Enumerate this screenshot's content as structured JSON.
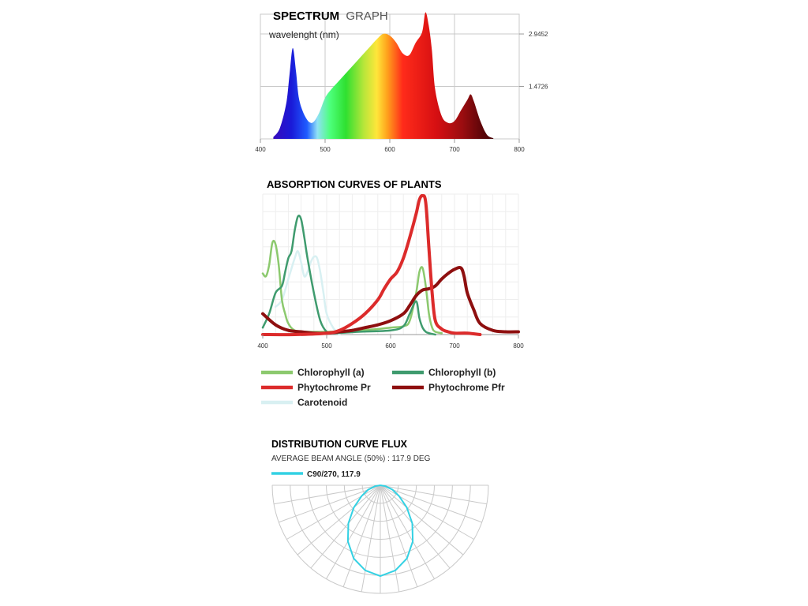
{
  "spectrum": {
    "title_bold": "SPECTRUM",
    "title_light": "GRAPH",
    "subtitle": "wavelenght (nm)",
    "chart_data": {
      "type": "area",
      "xlabel": "wavelenght (nm)",
      "xlim": [
        400,
        800
      ],
      "ylim": [
        0,
        3.5
      ],
      "xticks": [
        "400",
        "500",
        "600",
        "700",
        "800"
      ],
      "yticks": [
        {
          "value": 1.4726,
          "label": "1.4726"
        },
        {
          "value": 2.9452,
          "label": "2.9452"
        }
      ],
      "grid": true,
      "fill": "spectral-gradient",
      "x": [
        420,
        430,
        440,
        445,
        450,
        455,
        460,
        470,
        480,
        490,
        500,
        510,
        520,
        530,
        540,
        550,
        560,
        570,
        580,
        590,
        600,
        610,
        620,
        630,
        640,
        650,
        655,
        660,
        665,
        670,
        680,
        690,
        700,
        710,
        720,
        725,
        730,
        740,
        750,
        760
      ],
      "y": [
        0.05,
        0.3,
        1.0,
        1.8,
        2.55,
        1.9,
        1.1,
        0.6,
        0.45,
        0.7,
        1.15,
        1.4,
        1.6,
        1.8,
        2.0,
        2.2,
        2.4,
        2.6,
        2.8,
        2.95,
        2.9,
        2.7,
        2.4,
        2.35,
        2.7,
        3.0,
        3.55,
        3.2,
        2.5,
        1.4,
        0.65,
        0.45,
        0.5,
        0.8,
        1.1,
        1.25,
        1.05,
        0.5,
        0.12,
        0.02
      ]
    }
  },
  "absorption": {
    "title": "ABSORPTION CURVES OF PLANTS",
    "chart_data": {
      "type": "line",
      "xlim": [
        400,
        800
      ],
      "ylim": [
        0,
        1
      ],
      "xticks": [
        "400",
        "500",
        "600",
        "700",
        "800"
      ],
      "grid": true,
      "series": [
        {
          "name": "Chlorophyll (a)",
          "color": "#8cc96e",
          "x": [
            400,
            405,
            410,
            415,
            420,
            425,
            430,
            435,
            440,
            450,
            470,
            500,
            550,
            580,
            600,
            620,
            630,
            640,
            645,
            650,
            655,
            660,
            665,
            670,
            680
          ],
          "y": [
            0.44,
            0.42,
            0.5,
            0.66,
            0.65,
            0.5,
            0.25,
            0.15,
            0.08,
            0.03,
            0.02,
            0.02,
            0.03,
            0.04,
            0.05,
            0.06,
            0.1,
            0.3,
            0.45,
            0.48,
            0.35,
            0.15,
            0.05,
            0.02,
            0.01
          ]
        },
        {
          "name": "Chlorophyll (b)",
          "color": "#3f9b6e",
          "x": [
            400,
            410,
            420,
            430,
            435,
            440,
            445,
            450,
            455,
            460,
            465,
            470,
            480,
            490,
            500,
            510,
            550,
            600,
            620,
            630,
            640,
            645,
            650,
            655,
            660,
            670
          ],
          "y": [
            0.05,
            0.15,
            0.3,
            0.35,
            0.45,
            0.55,
            0.6,
            0.75,
            0.85,
            0.83,
            0.7,
            0.55,
            0.3,
            0.1,
            0.02,
            0.01,
            0.02,
            0.03,
            0.06,
            0.15,
            0.24,
            0.12,
            0.05,
            0.02,
            0.01,
            0.0
          ]
        },
        {
          "name": "Phytochrome Pr",
          "color": "#dc2b2b",
          "x": [
            400,
            450,
            500,
            520,
            540,
            560,
            580,
            590,
            600,
            610,
            620,
            630,
            640,
            645,
            650,
            655,
            660,
            665,
            670,
            680,
            690,
            700,
            720,
            740
          ],
          "y": [
            0.0,
            0.0,
            0.01,
            0.03,
            0.08,
            0.15,
            0.25,
            0.33,
            0.4,
            0.45,
            0.55,
            0.7,
            0.87,
            0.97,
            1.0,
            0.95,
            0.62,
            0.3,
            0.1,
            0.04,
            0.02,
            0.01,
            0.01,
            0.0
          ]
        },
        {
          "name": "Phytochrome Pfr",
          "color": "#8e0f0f",
          "x": [
            400,
            420,
            440,
            460,
            480,
            500,
            520,
            540,
            560,
            580,
            600,
            620,
            630,
            640,
            650,
            660,
            670,
            680,
            690,
            700,
            710,
            715,
            720,
            730,
            740,
            760,
            780,
            800
          ],
          "y": [
            0.15,
            0.07,
            0.03,
            0.02,
            0.01,
            0.01,
            0.02,
            0.03,
            0.05,
            0.07,
            0.1,
            0.15,
            0.21,
            0.28,
            0.32,
            0.33,
            0.35,
            0.4,
            0.44,
            0.47,
            0.48,
            0.42,
            0.3,
            0.18,
            0.08,
            0.03,
            0.02,
            0.02
          ]
        },
        {
          "name": "Carotenoid",
          "color": "#d8f0f2",
          "x": [
            420,
            430,
            440,
            450,
            455,
            460,
            465,
            470,
            475,
            480,
            485,
            490,
            495,
            500,
            510,
            520
          ],
          "y": [
            0.2,
            0.25,
            0.4,
            0.55,
            0.6,
            0.52,
            0.42,
            0.45,
            0.52,
            0.56,
            0.55,
            0.45,
            0.3,
            0.15,
            0.05,
            0.0
          ]
        }
      ]
    }
  },
  "flux": {
    "title": "DISTRIBUTION CURVE FLUX",
    "subtitle": "AVERAGE BEAM ANGLE  (50%) : 117.9 DEG",
    "legend_label": "C90/270, 117.9",
    "legend_color": "#33d1e3",
    "chart_data": {
      "type": "polar",
      "angular_step_deg": 10,
      "rings": 6,
      "series": [
        {
          "name": "C90/270, 117.9",
          "color": "#33d1e3",
          "angles_deg": [
            -90,
            -80,
            -70,
            -60,
            -50,
            -40,
            -30,
            -20,
            -10,
            0,
            10,
            20,
            30,
            40,
            50,
            60,
            70,
            80,
            90
          ],
          "values": [
            0.0,
            0.05,
            0.12,
            0.2,
            0.32,
            0.46,
            0.6,
            0.72,
            0.8,
            0.84,
            0.8,
            0.72,
            0.6,
            0.46,
            0.32,
            0.2,
            0.12,
            0.05,
            0.0
          ]
        }
      ]
    }
  }
}
